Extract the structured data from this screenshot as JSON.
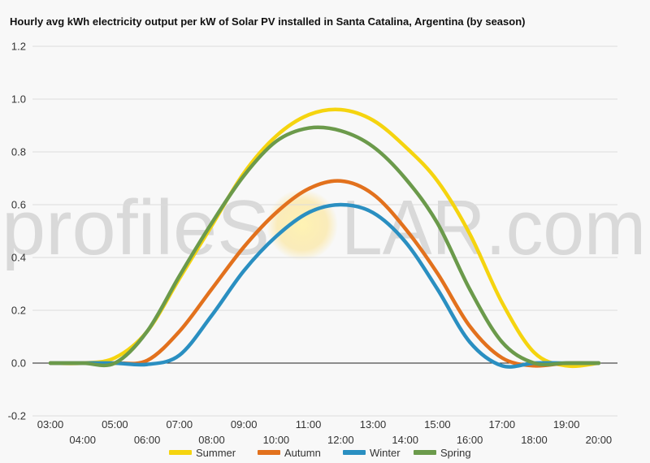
{
  "chart_data": {
    "type": "line",
    "title": "Hourly avg kWh electricity output per kW of Solar PV installed in Santa Catalina, Argentina (by season)",
    "xlabel": "",
    "ylabel": "",
    "categories": [
      "03:00",
      "04:00",
      "05:00",
      "06:00",
      "07:00",
      "08:00",
      "09:00",
      "10:00",
      "11:00",
      "12:00",
      "13:00",
      "14:00",
      "15:00",
      "16:00",
      "17:00",
      "18:00",
      "19:00",
      "20:00"
    ],
    "ylim": [
      -0.2,
      1.2
    ],
    "yticks": [
      "1.2",
      "1.0",
      "0.8",
      "0.6",
      "0.4",
      "0.2",
      "0.0",
      "-0.2"
    ],
    "grid": true,
    "legend_position": "bottom",
    "series": [
      {
        "name": "Summer",
        "color": "#f5d40f",
        "values": [
          0.0,
          0.0,
          0.02,
          0.12,
          0.32,
          0.52,
          0.72,
          0.86,
          0.94,
          0.96,
          0.92,
          0.82,
          0.69,
          0.49,
          0.23,
          0.04,
          -0.01,
          0.0
        ]
      },
      {
        "name": "Autumn",
        "color": "#e2711d",
        "values": [
          0.0,
          0.0,
          0.0,
          0.01,
          0.12,
          0.28,
          0.44,
          0.57,
          0.66,
          0.69,
          0.64,
          0.51,
          0.34,
          0.14,
          0.02,
          -0.01,
          0.0,
          0.0
        ]
      },
      {
        "name": "Winter",
        "color": "#2a8fc1",
        "values": [
          0.0,
          0.0,
          0.0,
          -0.005,
          0.03,
          0.18,
          0.35,
          0.48,
          0.57,
          0.6,
          0.57,
          0.46,
          0.28,
          0.08,
          -0.01,
          0.0,
          0.0,
          0.0
        ]
      },
      {
        "name": "Spring",
        "color": "#6b9a4b",
        "values": [
          0.0,
          0.0,
          0.0,
          0.12,
          0.33,
          0.53,
          0.71,
          0.84,
          0.89,
          0.88,
          0.82,
          0.7,
          0.53,
          0.28,
          0.08,
          0.0,
          0.0,
          0.0
        ]
      }
    ]
  },
  "watermark": {
    "left": "profileS",
    "right": "LAR.com"
  }
}
